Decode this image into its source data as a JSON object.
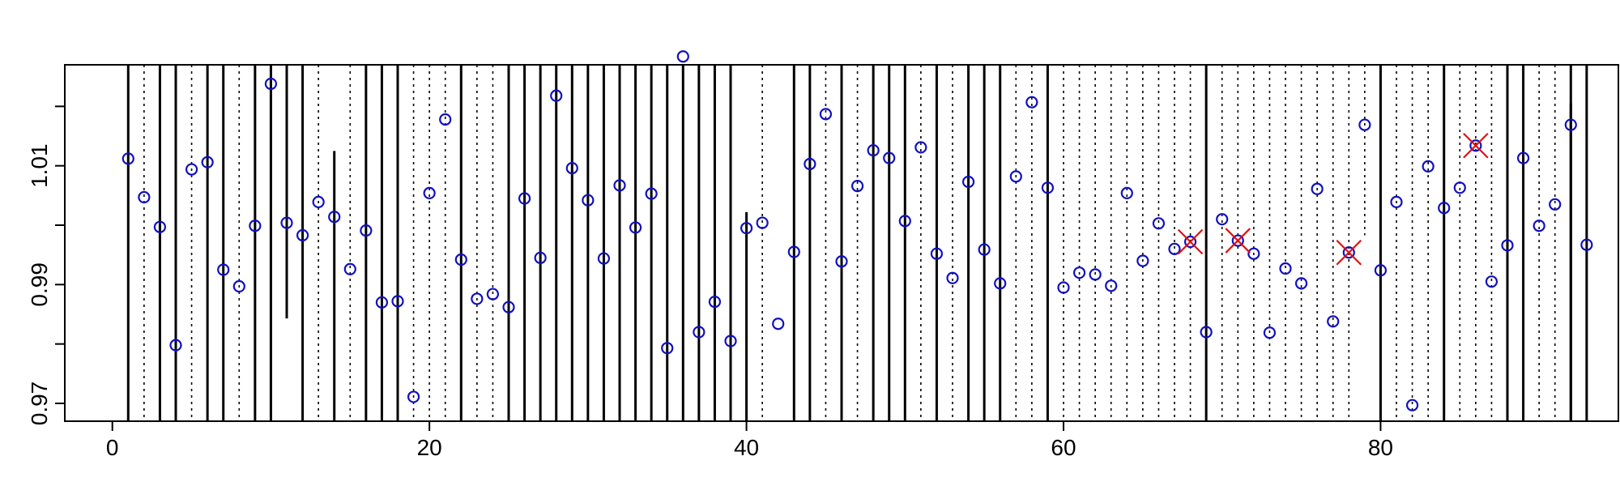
{
  "chart_data": {
    "type": "scatter",
    "title": "",
    "xlabel": "",
    "ylabel": "",
    "xlim": [
      -3,
      95
    ],
    "ylim": [
      0.967,
      1.027
    ],
    "x_ticks": [
      0,
      20,
      40,
      60,
      80
    ],
    "x_tick_labels": [
      "0",
      "20",
      "40",
      "60",
      "80"
    ],
    "y_ticks": [
      0.97,
      0.99,
      1.01
    ],
    "y_tick_labels": [
      "0.97",
      "0.99",
      "1.01"
    ],
    "y_minor_ticks": [
      0.98,
      1.0,
      1.02
    ],
    "grid": false,
    "colors": {
      "points": "#1010c0",
      "flagged": "#e01010",
      "lines": "#000000"
    },
    "series": [
      {
        "x": [
          1,
          2,
          3,
          4,
          5,
          6,
          7,
          8,
          9,
          10,
          11,
          12,
          13,
          14,
          15,
          16,
          17,
          18,
          19,
          20,
          21,
          22,
          23,
          24,
          25,
          26,
          27,
          28,
          29,
          30,
          31,
          32,
          33,
          34,
          35,
          36,
          37,
          38,
          39,
          40,
          41,
          42,
          43,
          44,
          45,
          46,
          47,
          48,
          49,
          50,
          51,
          52,
          53,
          54,
          55,
          56,
          57,
          58,
          59,
          60,
          61,
          62,
          63,
          64,
          65,
          66,
          67,
          68,
          69,
          70,
          71,
          72,
          73,
          74,
          75,
          76,
          77,
          78,
          79,
          80,
          81,
          82,
          83,
          84,
          85,
          86,
          87,
          88,
          89,
          90,
          91,
          92,
          93
        ],
        "y": [
          1.0112,
          1.0047,
          0.9997,
          0.9798,
          1.0094,
          1.0106,
          0.9925,
          0.9897,
          0.9999,
          1.0238,
          1.0004,
          0.9983,
          1.0039,
          1.0014,
          0.9926,
          0.9991,
          0.987,
          0.9872,
          0.9711,
          1.0054,
          1.0178,
          0.9942,
          0.9876,
          0.9884,
          0.9862,
          1.0045,
          0.9945,
          1.0218,
          1.0096,
          1.0042,
          0.9944,
          1.0067,
          0.9996,
          1.0053,
          0.9793,
          1.0284,
          0.982,
          0.9871,
          0.9805,
          0.9995,
          1.0004,
          0.9834,
          0.9955,
          1.0103,
          1.0187,
          0.9939,
          1.0066,
          1.0126,
          1.0113,
          1.0007,
          1.0131,
          0.9952,
          0.9911,
          1.0073,
          0.9959,
          0.9902,
          1.0082,
          1.0207,
          1.0063,
          0.9895,
          0.992,
          0.9917,
          0.9898,
          1.0054,
          0.994,
          1.0003,
          0.996,
          0.9972,
          0.982,
          1.001,
          0.9974,
          0.9952,
          0.9819,
          0.9927,
          0.9902,
          1.0061,
          0.9838,
          0.9954,
          1.0169,
          0.9924,
          1.0039,
          0.9697,
          1.0099,
          1.0029,
          1.0063,
          1.0134,
          0.9905,
          0.9966,
          1.0113,
          0.9999,
          1.0035,
          1.0169,
          0.9967
        ]
      },
      {
        "x": [
          68,
          71,
          78,
          86
        ],
        "y": [
          0.9972,
          0.9974,
          0.9954,
          1.0134
        ]
      }
    ],
    "solid_lines": [
      1,
      3,
      4,
      6,
      7,
      9,
      10,
      12,
      16,
      17,
      18,
      22,
      25,
      26,
      27,
      28,
      29,
      30,
      31,
      32,
      33,
      34,
      35,
      36,
      37,
      38,
      39,
      43,
      44,
      46,
      48,
      49,
      50,
      52,
      54,
      55,
      56,
      59,
      69,
      80,
      84,
      88,
      89,
      92,
      93
    ],
    "dotted_lines": [
      2,
      5,
      8,
      13,
      15,
      19,
      20,
      21,
      23,
      24,
      41,
      45,
      47,
      51,
      53,
      57,
      58,
      60,
      61,
      62,
      63,
      64,
      65,
      66,
      67,
      68,
      70,
      71,
      72,
      73,
      74,
      75,
      76,
      77,
      78,
      81,
      82,
      83,
      85,
      86,
      87,
      90,
      91
    ],
    "partial_solid_lines": [
      {
        "x": 11,
        "y_from": 0.9843,
        "y_to": 1.027
      },
      {
        "x": 14,
        "y_from": 0.967,
        "y_to": 1.0125
      },
      {
        "x": 40,
        "y_from": 0.967,
        "y_to": 1.0022
      },
      {
        "x": 92,
        "y_from": 0.967,
        "y_to": 1.0205
      }
    ],
    "partial_dotted_lines": [
      {
        "x": 79,
        "y_from": 0.9983,
        "y_to": 1.027
      }
    ]
  }
}
